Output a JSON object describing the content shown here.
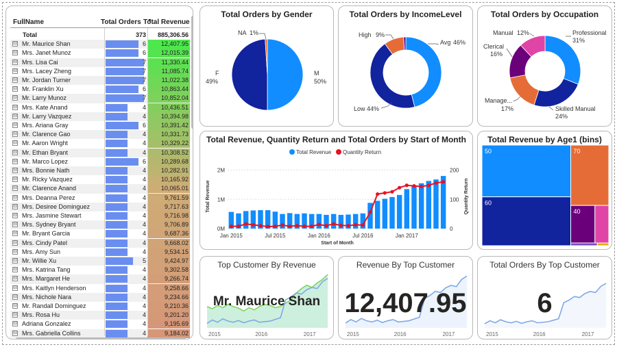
{
  "table": {
    "headers": {
      "name": "FullName",
      "orders": "Total Orders",
      "revenue": "Total Revenue"
    },
    "total": {
      "label": "Total",
      "orders": "373",
      "revenue": "885,306.56"
    },
    "expand_glyph": "⊟",
    "rows": [
      {
        "name": "Mr. Maurice Shan",
        "orders": "6",
        "revenue": "12,407.95"
      },
      {
        "name": "Mrs. Janet Munoz",
        "orders": "6",
        "revenue": "12,015.39"
      },
      {
        "name": "Mrs. Lisa Cai",
        "orders": "7",
        "revenue": "11,330.44"
      },
      {
        "name": "Mrs. Lacey Zheng",
        "orders": "7",
        "revenue": "11,085.74"
      },
      {
        "name": "Mr. Jordan Turner",
        "orders": "7",
        "revenue": "11,022.38"
      },
      {
        "name": "Mr. Franklin Xu",
        "orders": "6",
        "revenue": "10,863.44"
      },
      {
        "name": "Mr. Larry Munoz",
        "orders": "7",
        "revenue": "10,852.04"
      },
      {
        "name": "Mrs. Kate Anand",
        "orders": "4",
        "revenue": "10,436.51"
      },
      {
        "name": "Mr. Larry Vazquez",
        "orders": "4",
        "revenue": "10,394.98"
      },
      {
        "name": "Mrs. Ariana Gray",
        "orders": "6",
        "revenue": "10,391.42"
      },
      {
        "name": "Mr. Clarence Gao",
        "orders": "4",
        "revenue": "10,331.73"
      },
      {
        "name": "Mr. Aaron Wright",
        "orders": "4",
        "revenue": "10,329.22"
      },
      {
        "name": "Mr. Ethan Bryant",
        "orders": "4",
        "revenue": "10,308.52"
      },
      {
        "name": "Mr. Marco Lopez",
        "orders": "6",
        "revenue": "10,289.68"
      },
      {
        "name": "Mrs. Bonnie Nath",
        "orders": "4",
        "revenue": "10,282.91"
      },
      {
        "name": "Mr. Ricky Vazquez",
        "orders": "4",
        "revenue": "10,165.92"
      },
      {
        "name": "Mr. Clarence Anand",
        "orders": "4",
        "revenue": "10,065.01"
      },
      {
        "name": "Mrs. Deanna Perez",
        "orders": "4",
        "revenue": "9,761.59"
      },
      {
        "name": "Mrs. Desiree Dominguez",
        "orders": "4",
        "revenue": "9,717.63"
      },
      {
        "name": "Mrs. Jasmine Stewart",
        "orders": "4",
        "revenue": "9,716.98"
      },
      {
        "name": "Mrs. Sydney Bryant",
        "orders": "4",
        "revenue": "9,706.89"
      },
      {
        "name": "Mr. Bryant Garcia",
        "orders": "4",
        "revenue": "9,687.36"
      },
      {
        "name": "Mrs. Cindy Patel",
        "orders": "4",
        "revenue": "9,668.02"
      },
      {
        "name": "Mrs. Amy Sun",
        "orders": "4",
        "revenue": "9,534.15"
      },
      {
        "name": "Mr. Willie Xu",
        "orders": "5",
        "revenue": "9,424.97"
      },
      {
        "name": "Mrs. Katrina Tang",
        "orders": "4",
        "revenue": "9,302.58"
      },
      {
        "name": "Mrs. Margaret He",
        "orders": "4",
        "revenue": "9,266.74"
      },
      {
        "name": "Mrs. Kaitlyn Henderson",
        "orders": "4",
        "revenue": "9,258.66"
      },
      {
        "name": "Mrs. Nichole Nara",
        "orders": "4",
        "revenue": "9,234.66"
      },
      {
        "name": "Mr. Randall Dominguez",
        "orders": "4",
        "revenue": "9,210.36"
      },
      {
        "name": "Mrs. Rosa Hu",
        "orders": "4",
        "revenue": "9,201.20"
      },
      {
        "name": "Adriana Gonzalez",
        "orders": "4",
        "revenue": "9,195.69"
      },
      {
        "name": "Mrs. Gabriella Collins",
        "orders": "4",
        "revenue": "9,184.02"
      }
    ]
  },
  "gender_card": {
    "title": "Total Orders by Gender",
    "slices": [
      {
        "name": "M",
        "pct": "50%",
        "value": 50,
        "color": "#118DFF"
      },
      {
        "name": "F",
        "pct": "49%",
        "value": 49,
        "color": "#12239E"
      },
      {
        "name": "NA",
        "pct": "1%",
        "value": 1,
        "color": "#E66C37"
      }
    ]
  },
  "income_card": {
    "title": "Total Orders by IncomeLevel",
    "slices": [
      {
        "name": "Avg",
        "pct": "46%",
        "value": 46,
        "color": "#118DFF"
      },
      {
        "name": "Low",
        "pct": "44%",
        "value": 44,
        "color": "#12239E"
      },
      {
        "name": "High",
        "pct": "9%",
        "value": 9,
        "color": "#E66C37"
      },
      {
        "name": "",
        "pct": "",
        "value": 1,
        "color": "#6B007B"
      }
    ]
  },
  "occupation_card": {
    "title": "Total Orders by Occupation",
    "slices": [
      {
        "name": "Professional",
        "pct": "31%",
        "value": 31,
        "color": "#118DFF"
      },
      {
        "name": "Skilled Manual",
        "pct": "24%",
        "value": 24,
        "color": "#12239E"
      },
      {
        "name": "Manage...",
        "pct": "17%",
        "value": 17,
        "color": "#E66C37"
      },
      {
        "name": "Clerical",
        "pct": "16%",
        "value": 16,
        "color": "#6B007B"
      },
      {
        "name": "Manual",
        "pct": "12%",
        "value": 12,
        "color": "#E044A7"
      }
    ]
  },
  "combo_card": {
    "title": "Total Revenue, Quantity Return and Total Orders by Start of Month",
    "legend": [
      "Total Revenue",
      "Quantity Return"
    ],
    "legend_colors": [
      "#118DFF",
      "#E81123"
    ],
    "y_left_label": "Total Revenue",
    "y_right_label": "Quantity Return",
    "x_label": "Start of Month",
    "y_left_ticks": [
      "0M",
      "1M",
      "2M"
    ],
    "y_right_ticks": [
      "0",
      "100",
      "200"
    ],
    "x_ticks": [
      "Jan 2015",
      "Jul 2015",
      "Jan 2016",
      "Jul 2016",
      "Jan 2017"
    ]
  },
  "treemap_card": {
    "title": "Total Revenue by Age1 (bins)",
    "tiles": [
      {
        "label": "50",
        "value": 36,
        "color": "#118DFF"
      },
      {
        "label": "60",
        "value": 34,
        "color": "#12239E"
      },
      {
        "label": "70",
        "value": 18,
        "color": "#E66C37"
      },
      {
        "label": "40",
        "value": 7,
        "color": "#6B007B"
      },
      {
        "label": "",
        "value": 4,
        "color": "#E044A7"
      },
      {
        "label": "",
        "value": 0.5,
        "color": "#744EC2"
      },
      {
        "label": "",
        "value": 0.5,
        "color": "#D9B300"
      }
    ]
  },
  "top_name_card": {
    "title": "Top Customer By Revenue",
    "value": "Mr. Maurice Shan",
    "x_ticks": [
      "2015",
      "2016",
      "2017"
    ]
  },
  "top_revenue_card": {
    "title": "Revenue By Top Customer",
    "value": "12,407.95",
    "x_ticks": [
      "2015",
      "2016",
      "2017"
    ]
  },
  "top_orders_card": {
    "title": "Total Orders By Top Customer",
    "value": "6",
    "x_ticks": [
      "2015",
      "2016",
      "2017"
    ]
  },
  "chart_data": [
    {
      "type": "bar",
      "title": "Total Revenue, Quantity Return and Total Orders by Start of Month",
      "xlabel": "Start of Month",
      "ylabel": "Total Revenue",
      "x": [
        "2015-01",
        "2015-02",
        "2015-03",
        "2015-04",
        "2015-05",
        "2015-06",
        "2015-07",
        "2015-08",
        "2015-09",
        "2015-10",
        "2015-11",
        "2015-12",
        "2016-01",
        "2016-02",
        "2016-03",
        "2016-04",
        "2016-05",
        "2016-06",
        "2016-07",
        "2016-08",
        "2016-09",
        "2016-10",
        "2016-11",
        "2016-12",
        "2017-01",
        "2017-02",
        "2017-03",
        "2017-04",
        "2017-05",
        "2017-06"
      ],
      "series": [
        {
          "name": "Total Revenue",
          "axis": "left",
          "values": [
            0.57,
            0.52,
            0.6,
            0.62,
            0.63,
            0.63,
            0.58,
            0.5,
            0.53,
            0.5,
            0.52,
            0.5,
            0.5,
            0.47,
            0.5,
            0.47,
            0.48,
            0.5,
            0.52,
            0.88,
            0.95,
            1.02,
            1.08,
            1.15,
            1.35,
            1.45,
            1.55,
            1.63,
            1.68,
            1.8
          ]
        },
        {
          "name": "Quantity Return",
          "axis": "right",
          "values": [
            8,
            8,
            16,
            13,
            10,
            7,
            8,
            12,
            8,
            10,
            8,
            8,
            14,
            10,
            16,
            11,
            10,
            13,
            12,
            56,
            118,
            122,
            126,
            140,
            148,
            146,
            144,
            148,
            156,
            160
          ]
        }
      ],
      "ylim": [
        0,
        2.2
      ],
      "y2lim": [
        0,
        220
      ]
    },
    {
      "type": "pie",
      "title": "Total Orders by Gender",
      "categories": [
        "M",
        "F",
        "NA"
      ],
      "values": [
        50,
        49,
        1
      ]
    },
    {
      "type": "pie",
      "title": "Total Orders by IncomeLevel",
      "categories": [
        "Avg",
        "Low",
        "High"
      ],
      "values": [
        46,
        44,
        9
      ]
    },
    {
      "type": "pie",
      "title": "Total Orders by Occupation",
      "categories": [
        "Professional",
        "Skilled Manual",
        "Manage...",
        "Clerical",
        "Manual"
      ],
      "values": [
        31,
        24,
        17,
        16,
        12
      ]
    }
  ]
}
